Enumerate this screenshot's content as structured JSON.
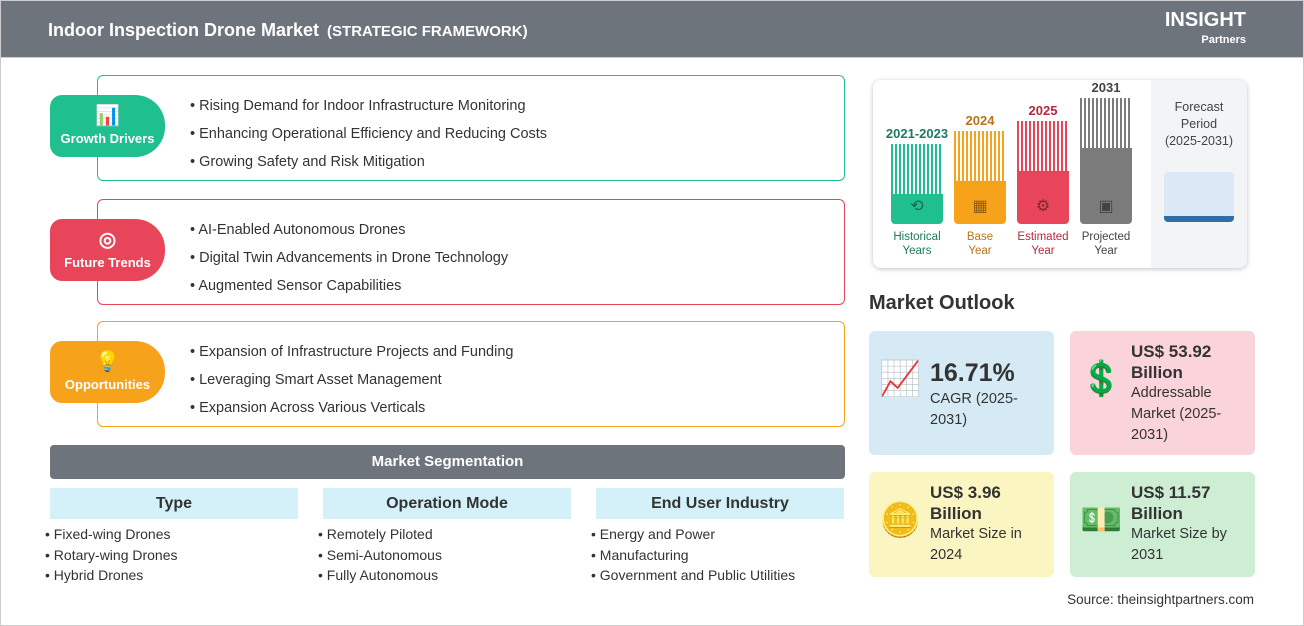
{
  "header": {
    "title": "Indoor Inspection Drone Market",
    "subtitle": "(STRATEGIC FRAMEWORK)",
    "logo": "The INSIGHT Partners"
  },
  "framework": [
    {
      "label": "Growth Drivers",
      "icon": "bar-chart-up-icon",
      "color": "#1fbf8f",
      "items": [
        "Rising Demand for Indoor Infrastructure Monitoring",
        "Enhancing Operational Efficiency and Reducing Costs",
        "Growing Safety and Risk Mitigation"
      ]
    },
    {
      "label": "Future Trends",
      "icon": "target-icon",
      "color": "#e8455a",
      "items": [
        "AI-Enabled Autonomous Drones",
        "Digital Twin Advancements in Drone Technology",
        "Augmented Sensor Capabilities"
      ]
    },
    {
      "label": "Opportunities",
      "icon": "lightbulb-hand-icon",
      "color": "#f7a21b",
      "items": [
        "Expansion of Infrastructure Projects and Funding",
        "Leveraging Smart Asset Management",
        "Expansion Across Various Verticals"
      ]
    }
  ],
  "segmentation": {
    "title": "Market Segmentation",
    "columns": [
      {
        "header": "Type",
        "items": [
          "Fixed-wing Drones",
          "Rotary-wing Drones",
          "Hybrid Drones"
        ]
      },
      {
        "header": "Operation Mode",
        "items": [
          "Remotely Piloted",
          "Semi-Autonomous",
          "Fully Autonomous"
        ]
      },
      {
        "header": "End User Industry",
        "items": [
          "Energy and Power",
          "Manufacturing",
          "Government and Public Utilities"
        ]
      }
    ]
  },
  "timeline": {
    "bars": [
      {
        "year": "2021-2023",
        "label1": "Historical",
        "label2": "Years",
        "color": "#1fbf8f",
        "text_color": "#1d7a5e"
      },
      {
        "year": "2024",
        "label1": "Base",
        "label2": "Year",
        "color": "#f7a21b",
        "text_color": "#b8741a"
      },
      {
        "year": "2025",
        "label1": "Estimated",
        "label2": "Year",
        "color": "#e8455a",
        "text_color": "#b3283c"
      },
      {
        "year": "2031",
        "label1": "Projected",
        "label2": "Year",
        "color": "#7b7b7b",
        "text_color": "#444"
      }
    ],
    "forecast_label": "Forecast Period",
    "forecast_range": "(2025-2031)"
  },
  "outlook": {
    "title": "Market Outlook",
    "cards": [
      {
        "value": "16.71%",
        "desc": "CAGR (2025-2031)",
        "bg": "#d6eaf6",
        "icon": "growth-chart-icon"
      },
      {
        "value": "US$ 53.92 Billion",
        "desc": "Addressable Market (2025-2031)",
        "bg": "#fad4da",
        "icon": "dollar-bulb-icon"
      },
      {
        "value": "US$ 3.96 Billion",
        "desc": "Market Size in 2024",
        "bg": "#fbf5c2",
        "icon": "coins-chart-icon"
      },
      {
        "value": "US$ 11.57 Billion",
        "desc": "Market Size by 2031",
        "bg": "#cdeed3",
        "icon": "money-chart-icon"
      }
    ]
  },
  "source": "Source: theinsightpartners.com"
}
